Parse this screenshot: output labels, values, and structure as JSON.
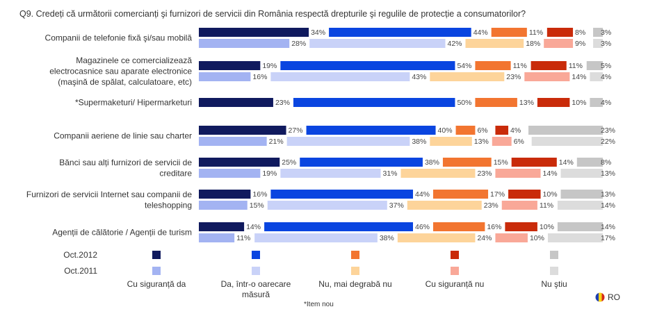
{
  "chart_data": {
    "type": "bar",
    "orientation": "horizontal",
    "layout": "segmented-columns",
    "title": "Q9. Credeți că următorii comercianți şi furnizori de servicii din România respectă drepturile şi regulile de protecție a consumatorilor?",
    "categories": [
      "Companii de telefonie fixă şi/sau mobilă",
      "Magazinele ce comercializează electrocasnice sau aparate electronice (maşină de spălat, calculatoare, etc)",
      "*Supermaketuri/ Hipermarketuri",
      "Companii aeriene de linie sau charter",
      "Bănci sau alți furnizori de servicii de creditare",
      "Furnizori de servicii Internet sau companii de teleshopping",
      "Agenții de călătorie / Agenții de turism"
    ],
    "category_lines": [
      [
        "Companii de telefonie fixă şi/sau mobilă"
      ],
      [
        "Magazinele ce comercializează",
        "electrocasnice sau aparate electronice",
        "(maşină de spălat, calculatoare, etc)"
      ],
      [
        "*Supermaketuri/ Hipermarketuri"
      ],
      [
        "Companii aeriene de linie sau charter"
      ],
      [
        "Bănci sau alți furnizori de servicii de",
        "creditare"
      ],
      [
        "Furnizori de servicii Internet sau companii de",
        "teleshopping"
      ],
      [
        "Agenții de călătorie / Agenții de turism"
      ]
    ],
    "answers": [
      "Cu siguranță da",
      "Da, într-o oarecare măsură",
      "Nu, mai degrabă nu",
      "Cu siguranță nu",
      "Nu ştiu"
    ],
    "answer_lines": [
      [
        "Cu siguranță da"
      ],
      [
        "Da, într-o oarecare",
        "măsură"
      ],
      [
        "Nu, mai degrabă nu"
      ],
      [
        "Cu siguranță nu"
      ],
      [
        "Nu ştiu"
      ]
    ],
    "series": [
      {
        "name": "Oct.2012",
        "colors": [
          "#101a5e",
          "#0a45e0",
          "#f27530",
          "#c92b0a",
          "#c6c6c6"
        ],
        "values": [
          [
            34,
            44,
            11,
            8,
            3
          ],
          [
            19,
            54,
            11,
            11,
            5
          ],
          [
            23,
            50,
            13,
            10,
            4
          ],
          [
            27,
            40,
            6,
            4,
            23
          ],
          [
            25,
            38,
            15,
            14,
            8
          ],
          [
            16,
            44,
            17,
            10,
            13
          ],
          [
            14,
            46,
            16,
            10,
            14
          ]
        ]
      },
      {
        "name": "Oct.2011",
        "colors": [
          "#a3b3f2",
          "#c9d2f8",
          "#fdd49a",
          "#f9a898",
          "#dcdcdc"
        ],
        "values": [
          [
            28,
            42,
            18,
            9,
            3
          ],
          [
            16,
            43,
            23,
            14,
            4
          ],
          null,
          [
            21,
            38,
            13,
            6,
            22
          ],
          [
            19,
            31,
            23,
            14,
            13
          ],
          [
            15,
            37,
            23,
            11,
            14
          ],
          [
            11,
            38,
            24,
            10,
            17
          ]
        ]
      }
    ],
    "value_suffix": "%",
    "footnote": "*Item nou",
    "country_badge": "RO",
    "legend_placement": "bottom"
  }
}
